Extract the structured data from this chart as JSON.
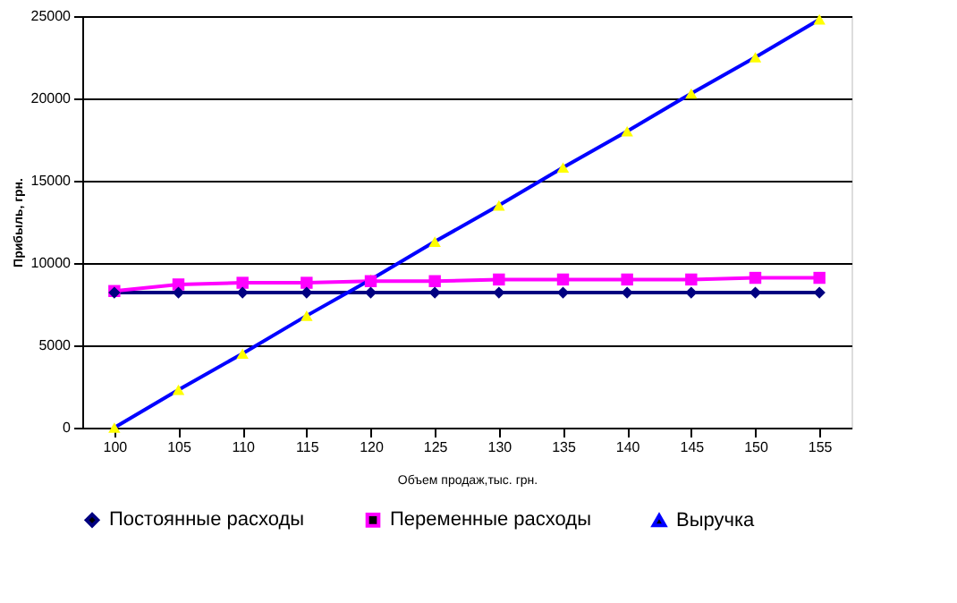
{
  "chart_data": {
    "type": "line",
    "xlabel": "Объем продаж,тыс. грн.",
    "ylabel": "Прибыль, грн.",
    "categories": [
      "100",
      "105",
      "110",
      "115",
      "120",
      "125",
      "130",
      "135",
      "140",
      "145",
      "150",
      "155"
    ],
    "series": [
      {
        "name": "Постоянные расходы",
        "color": "#000080",
        "marker": "diamond",
        "values": [
          8200,
          8200,
          8200,
          8200,
          8200,
          8200,
          8200,
          8200,
          8200,
          8200,
          8200,
          8200
        ]
      },
      {
        "name": "Переменные расходы",
        "color": "#ff00ff",
        "marker": "square",
        "values": [
          8300,
          8700,
          8800,
          8800,
          8900,
          8900,
          9000,
          9000,
          9000,
          9000,
          9100,
          9100
        ]
      },
      {
        "name": "Выручка",
        "color": "#0000ff",
        "marker": "triangle",
        "colors": [
          "#ffff00",
          "#ffff00",
          "#ffff00",
          "#ffff00",
          "#ffff00",
          "#ffff00",
          "#ffff00",
          "#ffff00",
          "#ffff00",
          "#ffff00",
          "#ffff00",
          "#ffff00"
        ],
        "values": [
          0,
          2300,
          4500,
          6800,
          9000,
          11300,
          13500,
          15800,
          18000,
          20300,
          22500,
          24800
        ]
      }
    ],
    "ylim": [
      0,
      25000
    ],
    "yticks": [
      0,
      5000,
      10000,
      15000,
      20000,
      25000
    ],
    "grid": "y",
    "legend": "bottom",
    "line_style": "solid"
  }
}
